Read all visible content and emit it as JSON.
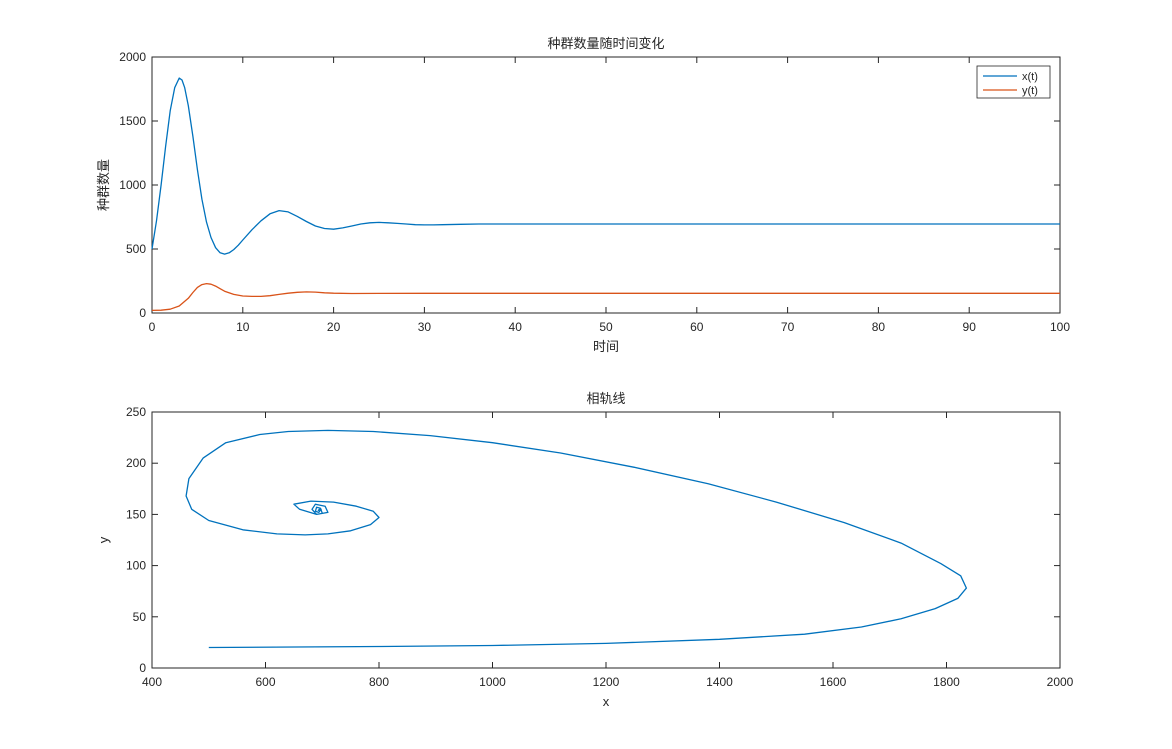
{
  "chart_data": [
    {
      "type": "line",
      "title": "种群数量随时间变化",
      "xlabel": "时间",
      "ylabel": "种群数量",
      "xlim": [
        0,
        100
      ],
      "ylim": [
        0,
        2000
      ],
      "xticks": [
        0,
        10,
        20,
        30,
        40,
        50,
        60,
        70,
        80,
        90,
        100
      ],
      "yticks": [
        0,
        500,
        1000,
        1500,
        2000
      ],
      "legend_position": "top-right",
      "grid": false,
      "series": [
        {
          "name": "x(t)",
          "color": "#0072BD",
          "x": [
            0,
            0.5,
            1,
            1.5,
            2,
            2.5,
            3,
            3.3,
            3.6,
            4,
            4.5,
            5,
            5.5,
            6,
            6.5,
            7,
            7.5,
            8,
            8.5,
            9,
            9.5,
            10,
            11,
            12,
            13,
            14,
            15,
            16,
            17,
            18,
            19,
            20,
            21,
            22,
            23,
            24,
            25,
            26,
            27,
            28,
            29,
            30,
            31,
            32,
            34,
            36,
            40,
            50,
            60,
            70,
            80,
            90,
            100
          ],
          "y": [
            500,
            720,
            1000,
            1300,
            1580,
            1760,
            1835,
            1820,
            1760,
            1620,
            1380,
            1120,
            890,
            710,
            590,
            510,
            470,
            460,
            470,
            495,
            530,
            570,
            650,
            720,
            775,
            800,
            790,
            755,
            715,
            680,
            660,
            655,
            665,
            680,
            695,
            705,
            708,
            705,
            700,
            695,
            690,
            688,
            688,
            690,
            693,
            695,
            695,
            695,
            695,
            695,
            695,
            695,
            695
          ]
        },
        {
          "name": "y(t)",
          "color": "#D95319",
          "x": [
            0,
            1,
            2,
            3,
            4,
            4.5,
            5,
            5.5,
            6,
            6.5,
            7,
            7.5,
            8,
            9,
            10,
            11,
            12,
            13,
            14,
            15,
            16,
            17,
            18,
            19,
            20,
            22,
            25,
            30,
            40,
            50,
            60,
            70,
            80,
            90,
            100
          ],
          "y": [
            20,
            22,
            30,
            55,
            115,
            160,
            200,
            222,
            230,
            225,
            210,
            190,
            170,
            145,
            133,
            130,
            130,
            135,
            145,
            155,
            162,
            165,
            163,
            158,
            155,
            152,
            153,
            154,
            154,
            154,
            154,
            154,
            154,
            154,
            154
          ]
        }
      ]
    },
    {
      "type": "line",
      "title": "相轨线",
      "xlabel": "x",
      "ylabel": "y",
      "xlim": [
        400,
        2000
      ],
      "ylim": [
        0,
        250
      ],
      "xticks": [
        400,
        600,
        800,
        1000,
        1200,
        1400,
        1600,
        1800,
        2000
      ],
      "yticks": [
        0,
        50,
        100,
        150,
        200,
        250
      ],
      "grid": false,
      "series": [
        {
          "color": "#0072BD",
          "x": [
            500,
            800,
            1000,
            1200,
            1400,
            1550,
            1650,
            1720,
            1780,
            1820,
            1835,
            1825,
            1790,
            1720,
            1620,
            1500,
            1380,
            1250,
            1120,
            1000,
            890,
            790,
            710,
            640,
            590,
            530,
            490,
            465,
            460,
            470,
            500,
            560,
            620,
            670,
            710,
            750,
            785,
            800,
            790,
            760,
            720,
            680,
            650,
            660,
            690,
            710,
            705,
            688,
            682,
            690,
            700,
            697,
            690,
            688,
            694,
            698,
            695,
            693,
            695
          ],
          "y": [
            20,
            21,
            22,
            24,
            28,
            33,
            40,
            48,
            58,
            68,
            78,
            90,
            102,
            122,
            142,
            162,
            180,
            196,
            210,
            220,
            227,
            231,
            232,
            231,
            228,
            220,
            205,
            185,
            168,
            155,
            144,
            135,
            131,
            130,
            131,
            134,
            140,
            147,
            153,
            158,
            162,
            163,
            160,
            155,
            150,
            152,
            158,
            160,
            155,
            150,
            151,
            156,
            157,
            153,
            152,
            155,
            155,
            154,
            154
          ]
        }
      ]
    }
  ]
}
